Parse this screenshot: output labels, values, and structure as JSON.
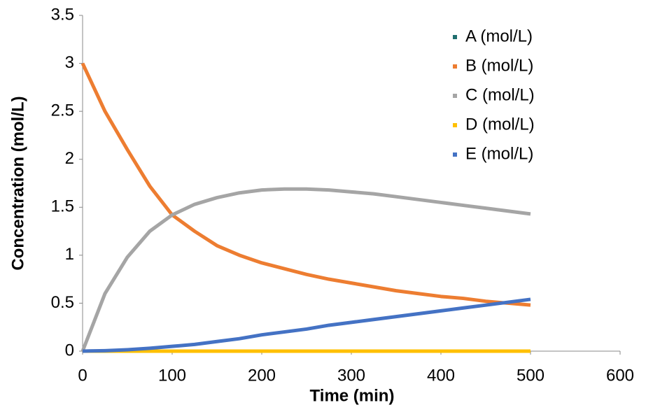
{
  "chart_data": {
    "type": "line",
    "x_label": "Time (min)",
    "y_label": "Concentration (mol/L)",
    "x": [
      0,
      25,
      50,
      75,
      100,
      125,
      150,
      175,
      200,
      225,
      250,
      275,
      300,
      325,
      350,
      375,
      400,
      425,
      450,
      475,
      500
    ],
    "series": [
      {
        "name": "A (mol/L)",
        "color": "#1f6f6f",
        "label_color": "#4472c4",
        "values": [
          0,
          0,
          0,
          0,
          0,
          0,
          0,
          0,
          0,
          0,
          0,
          0,
          0,
          0,
          0,
          0,
          0,
          0,
          0,
          0,
          0
        ]
      },
      {
        "name": "B (mol/L)",
        "color": "#ed7d31",
        "label_color": "#ed7d31",
        "values": [
          3.0,
          2.5,
          2.1,
          1.72,
          1.42,
          1.25,
          1.1,
          1.0,
          0.92,
          0.86,
          0.8,
          0.75,
          0.71,
          0.67,
          0.63,
          0.6,
          0.57,
          0.55,
          0.52,
          0.5,
          0.48
        ]
      },
      {
        "name": "C (mol/L)",
        "color": "#a5a5a5",
        "label_color": "#a5a5a5",
        "values": [
          0,
          0.6,
          0.98,
          1.25,
          1.42,
          1.53,
          1.6,
          1.65,
          1.68,
          1.69,
          1.69,
          1.68,
          1.66,
          1.64,
          1.61,
          1.58,
          1.55,
          1.52,
          1.49,
          1.46,
          1.43
        ]
      },
      {
        "name": "D (mol/L)",
        "color": "#ffc000",
        "label_color": "#000000",
        "values": [
          0,
          0,
          0,
          0,
          0,
          0,
          0,
          0,
          0,
          0,
          0,
          0,
          0,
          0,
          0,
          0,
          0,
          0,
          0,
          0,
          0
        ]
      },
      {
        "name": "E (mol/L)",
        "color": "#4472c4",
        "label_color": "#4472c4",
        "values": [
          0,
          0.005,
          0.015,
          0.03,
          0.05,
          0.07,
          0.1,
          0.13,
          0.17,
          0.2,
          0.23,
          0.27,
          0.3,
          0.33,
          0.36,
          0.39,
          0.42,
          0.45,
          0.48,
          0.51,
          0.54
        ]
      }
    ],
    "xlim": [
      0,
      600
    ],
    "xticks": [
      0,
      100,
      200,
      300,
      400,
      500,
      600
    ],
    "ylim": [
      0,
      3.5
    ],
    "yticks": [
      0,
      0.5,
      1,
      1.5,
      2,
      2.5,
      3,
      3.5
    ],
    "legend": "top-right",
    "grid": false
  }
}
